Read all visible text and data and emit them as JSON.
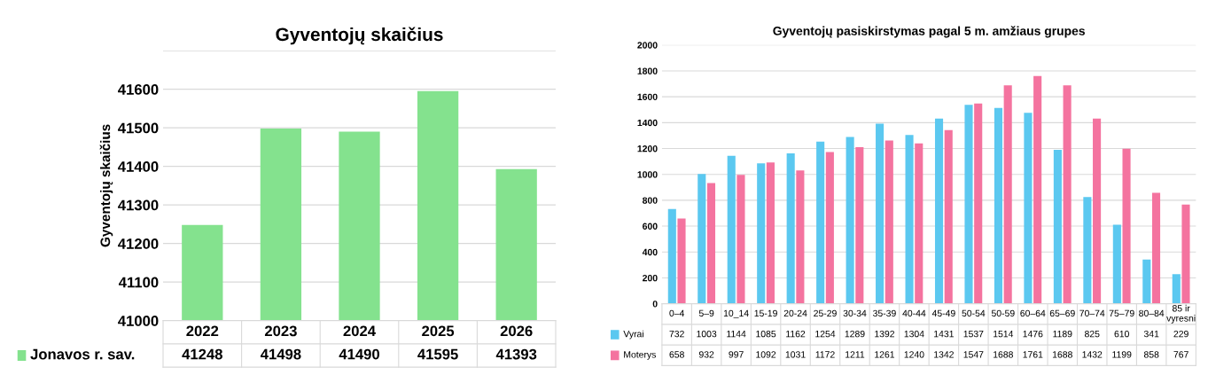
{
  "chart_data": [
    {
      "type": "bar",
      "title": "Gyventojų skaičius",
      "ylabel": "Gyventojų skaičius",
      "categories": [
        "2022",
        "2023",
        "2024",
        "2025",
        "2026"
      ],
      "series": [
        {
          "name": "Jonavos r. sav.",
          "color": "#84e28e",
          "values": [
            41248,
            41498,
            41490,
            41595,
            41393
          ]
        }
      ],
      "ylim": [
        41000,
        41700
      ],
      "yticks": [
        41000,
        41100,
        41200,
        41300,
        41400,
        41500,
        41600,
        {
          "value": 41700,
          "label": null
        }
      ],
      "grid": "y",
      "data_labels": true,
      "legend": "bottom"
    },
    {
      "type": "bar",
      "title": "Gyventojų pasiskirstymas pagal 5 m. amžiaus grupes",
      "categories": [
        "0–4",
        "5–9",
        "10_14",
        "15-19",
        "20-24",
        "25-29",
        "30-34",
        "35-39",
        "40-44",
        "45-49",
        "50-54",
        "50-59",
        "60–64",
        "65–69",
        "70–74",
        "75–79",
        "80–84",
        "85 ir\nvyresni"
      ],
      "series": [
        {
          "name": "Vyrai",
          "color": "#5bc8f0",
          "values": [
            732,
            1003,
            1144,
            1085,
            1162,
            1254,
            1289,
            1392,
            1304,
            1431,
            1537,
            1514,
            1476,
            1189,
            825,
            610,
            341,
            229
          ]
        },
        {
          "name": "Moterys",
          "color": "#f4739f",
          "values": [
            658,
            932,
            997,
            1092,
            1031,
            1172,
            1211,
            1261,
            1240,
            1342,
            1547,
            1688,
            1761,
            1688,
            1432,
            1199,
            858,
            767
          ]
        }
      ],
      "ylim": [
        0,
        2000
      ],
      "yticks": [
        0,
        200,
        400,
        600,
        800,
        1000,
        1200,
        1400,
        1600,
        1800,
        2000
      ],
      "grid": "y",
      "data_labels": true,
      "legend": "bottom"
    }
  ]
}
